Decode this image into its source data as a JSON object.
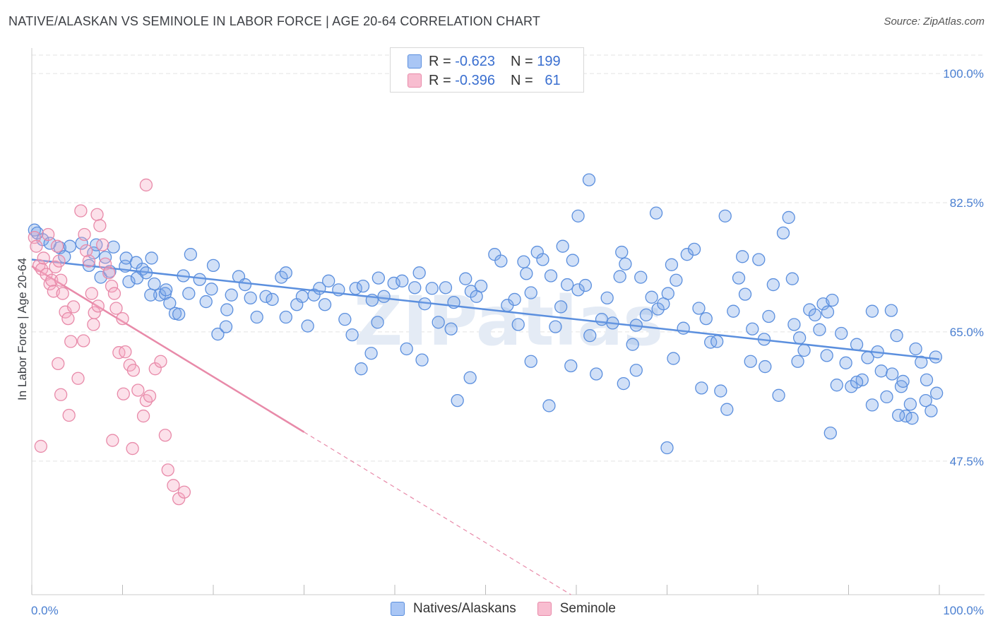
{
  "title": "NATIVE/ALASKAN VS SEMINOLE IN LABOR FORCE | AGE 20-64 CORRELATION CHART",
  "source": "Source: ZipAtlas.com",
  "legend": {
    "r_label": "R =",
    "n_label": "N =",
    "rows": [
      {
        "r": "-0.623",
        "n": "199",
        "color": "#a9c6f5",
        "border": "#5b8fde"
      },
      {
        "r": "-0.396",
        "n": "61",
        "color": "#f8bdd0",
        "border": "#e88aa9"
      }
    ]
  },
  "bottom_legend": [
    {
      "label": "Natives/Alaskans",
      "color": "#a9c6f5",
      "border": "#5b8fde"
    },
    {
      "label": "Seminole",
      "color": "#f8bdd0",
      "border": "#e88aa9"
    }
  ],
  "watermark": "ZIPatlas",
  "chart_data": {
    "type": "scatter",
    "ylabel": "In Labor Force | Age 20-64",
    "x_tick_labels": [
      "0.0%",
      "100.0%"
    ],
    "y_tick_labels": [
      "100.0%",
      "82.5%",
      "65.0%",
      "47.5%"
    ],
    "y_ticks": [
      100.0,
      82.5,
      65.0,
      47.5
    ],
    "xlim": [
      0,
      100
    ],
    "ylim": [
      29.4,
      102.5
    ],
    "grid": true,
    "series": [
      {
        "name": "Natives/Alaskans",
        "color": "#5b8fde",
        "fill": "rgba(122,165,232,0.35)",
        "trend": {
          "x0": 0,
          "y0": 74.8,
          "x1": 100,
          "y1": 61.3,
          "dash_from": null
        },
        "points": [
          [
            0.3,
            78.8
          ],
          [
            0.6,
            78.4
          ],
          [
            1.2,
            77.5
          ],
          [
            2.0,
            77.0
          ],
          [
            3.1,
            76.4
          ],
          [
            3.6,
            75.2
          ],
          [
            4.2,
            76.6
          ],
          [
            5.5,
            77.0
          ],
          [
            6.3,
            74.0
          ],
          [
            6.8,
            75.7
          ],
          [
            7.1,
            76.8
          ],
          [
            7.6,
            72.4
          ],
          [
            8.6,
            73.2
          ],
          [
            8.1,
            75.1
          ],
          [
            9.0,
            76.5
          ],
          [
            10.3,
            73.9
          ],
          [
            10.4,
            75.0
          ],
          [
            10.7,
            71.8
          ],
          [
            11.5,
            74.4
          ],
          [
            11.6,
            72.3
          ],
          [
            12.2,
            73.5
          ],
          [
            12.6,
            73.0
          ],
          [
            13.2,
            75.0
          ],
          [
            13.5,
            71.5
          ],
          [
            14.1,
            70.0
          ],
          [
            14.7,
            70.2
          ],
          [
            14.8,
            70.7
          ],
          [
            15.2,
            68.9
          ],
          [
            15.8,
            67.5
          ],
          [
            16.2,
            67.4
          ],
          [
            17.3,
            70.2
          ],
          [
            17.5,
            75.5
          ],
          [
            18.5,
            72.1
          ],
          [
            19.2,
            69.1
          ],
          [
            19.8,
            70.8
          ],
          [
            20.5,
            64.7
          ],
          [
            21.5,
            68.0
          ],
          [
            22.0,
            70.0
          ],
          [
            21.4,
            65.7
          ],
          [
            22.8,
            72.5
          ],
          [
            23.5,
            71.4
          ],
          [
            24.1,
            69.6
          ],
          [
            24.8,
            67.0
          ],
          [
            25.8,
            69.8
          ],
          [
            26.5,
            69.4
          ],
          [
            27.5,
            72.4
          ],
          [
            28.0,
            73.0
          ],
          [
            29.2,
            68.7
          ],
          [
            29.8,
            69.8
          ],
          [
            30.4,
            65.8
          ],
          [
            31.1,
            70.0
          ],
          [
            31.7,
            70.9
          ],
          [
            32.3,
            68.7
          ],
          [
            32.7,
            71.9
          ],
          [
            33.8,
            70.7
          ],
          [
            34.5,
            66.7
          ],
          [
            35.3,
            64.6
          ],
          [
            35.7,
            70.9
          ],
          [
            36.5,
            71.2
          ],
          [
            37.5,
            69.3
          ],
          [
            38.1,
            66.3
          ],
          [
            38.8,
            69.8
          ],
          [
            38.2,
            72.3
          ],
          [
            39.9,
            71.6
          ],
          [
            40.8,
            71.9
          ],
          [
            41.3,
            62.7
          ],
          [
            42.2,
            71.0
          ],
          [
            42.7,
            73.0
          ],
          [
            43.3,
            68.8
          ],
          [
            44.1,
            70.9
          ],
          [
            44.8,
            66.3
          ],
          [
            45.6,
            71.0
          ],
          [
            46.2,
            65.4
          ],
          [
            46.5,
            69.0
          ],
          [
            47.8,
            72.2
          ],
          [
            48.4,
            70.5
          ],
          [
            49.0,
            69.8
          ],
          [
            49.5,
            71.2
          ],
          [
            51.0,
            75.5
          ],
          [
            51.7,
            74.6
          ],
          [
            52.4,
            68.6
          ],
          [
            53.2,
            69.4
          ],
          [
            53.6,
            66.0
          ],
          [
            54.2,
            74.5
          ],
          [
            54.5,
            72.9
          ],
          [
            55.0,
            70.3
          ],
          [
            55.7,
            75.8
          ],
          [
            56.3,
            74.8
          ],
          [
            57.2,
            72.6
          ],
          [
            57.7,
            65.7
          ],
          [
            58.3,
            68.4
          ],
          [
            58.5,
            76.6
          ],
          [
            59.0,
            71.4
          ],
          [
            59.6,
            74.7
          ],
          [
            60.2,
            70.7
          ],
          [
            61.0,
            71.3
          ],
          [
            61.5,
            64.5
          ],
          [
            62.2,
            59.3
          ],
          [
            62.8,
            66.7
          ],
          [
            63.4,
            69.6
          ],
          [
            64.0,
            66.2
          ],
          [
            64.8,
            72.5
          ],
          [
            65.4,
            74.2
          ],
          [
            66.2,
            63.3
          ],
          [
            66.6,
            65.9
          ],
          [
            67.1,
            72.4
          ],
          [
            67.7,
            67.3
          ],
          [
            68.3,
            69.7
          ],
          [
            69.0,
            68.1
          ],
          [
            69.6,
            68.8
          ],
          [
            70.1,
            70.2
          ],
          [
            70.5,
            74.1
          ],
          [
            71.0,
            72.0
          ],
          [
            71.8,
            65.5
          ],
          [
            72.2,
            75.5
          ],
          [
            73.0,
            76.2
          ],
          [
            73.5,
            68.2
          ],
          [
            74.3,
            66.8
          ],
          [
            74.8,
            63.6
          ],
          [
            75.5,
            63.7
          ],
          [
            75.9,
            57.0
          ],
          [
            76.6,
            54.5
          ],
          [
            77.3,
            67.8
          ],
          [
            77.9,
            72.3
          ],
          [
            78.6,
            70.1
          ],
          [
            79.2,
            61.0
          ],
          [
            79.4,
            65.4
          ],
          [
            80.1,
            74.8
          ],
          [
            80.8,
            60.3
          ],
          [
            81.2,
            67.1
          ],
          [
            81.7,
            71.4
          ],
          [
            82.3,
            56.4
          ],
          [
            82.8,
            78.4
          ],
          [
            83.4,
            80.5
          ],
          [
            84.0,
            66.0
          ],
          [
            84.6,
            64.2
          ],
          [
            85.1,
            62.5
          ],
          [
            85.7,
            68.0
          ],
          [
            86.3,
            67.3
          ],
          [
            86.8,
            65.3
          ],
          [
            87.2,
            68.8
          ],
          [
            87.7,
            67.7
          ],
          [
            88.2,
            69.3
          ],
          [
            88.7,
            57.8
          ],
          [
            89.2,
            64.8
          ],
          [
            89.7,
            60.8
          ],
          [
            90.3,
            57.6
          ],
          [
            90.9,
            63.3
          ],
          [
            91.5,
            58.5
          ],
          [
            92.1,
            61.5
          ],
          [
            92.6,
            67.8
          ],
          [
            93.2,
            62.3
          ],
          [
            93.6,
            59.7
          ],
          [
            94.2,
            56.2
          ],
          [
            94.7,
            67.9
          ],
          [
            95.3,
            64.5
          ],
          [
            95.8,
            57.6
          ],
          [
            96.3,
            53.6
          ],
          [
            96.8,
            55.2
          ],
          [
            97.4,
            62.7
          ],
          [
            98.0,
            60.9
          ],
          [
            98.6,
            58.5
          ],
          [
            99.1,
            54.3
          ],
          [
            99.6,
            61.6
          ],
          [
            61.4,
            85.6
          ],
          [
            60.2,
            80.7
          ],
          [
            68.8,
            81.1
          ],
          [
            76.4,
            80.7
          ],
          [
            65.0,
            75.8
          ],
          [
            78.3,
            75.2
          ],
          [
            73.8,
            57.4
          ],
          [
            90.9,
            58.2
          ],
          [
            95.5,
            53.7
          ],
          [
            97.0,
            53.3
          ],
          [
            87.6,
            61.8
          ],
          [
            80.7,
            64.0
          ],
          [
            83.8,
            72.2
          ],
          [
            70.7,
            61.4
          ],
          [
            65.2,
            58.0
          ],
          [
            57.0,
            55.0
          ],
          [
            59.4,
            60.4
          ],
          [
            48.3,
            58.8
          ],
          [
            46.9,
            55.7
          ],
          [
            43.0,
            61.2
          ],
          [
            36.3,
            60.0
          ],
          [
            37.4,
            62.1
          ],
          [
            28.0,
            67.0
          ],
          [
            20.0,
            74.0
          ],
          [
            16.7,
            72.6
          ],
          [
            13.1,
            70.0
          ],
          [
            55.0,
            61.0
          ],
          [
            66.6,
            59.8
          ],
          [
            70.0,
            49.3
          ],
          [
            88.0,
            51.3
          ],
          [
            92.6,
            55.1
          ],
          [
            94.8,
            59.3
          ],
          [
            96.0,
            58.3
          ],
          [
            98.5,
            55.7
          ],
          [
            99.7,
            56.7
          ],
          [
            84.4,
            61.0
          ]
        ]
      },
      {
        "name": "Seminole",
        "color": "#e88aa9",
        "fill": "rgba(245,170,195,0.35)",
        "trend": {
          "x0": 0,
          "y0": 73.9,
          "x1": 100,
          "y1": -1.0,
          "dash_from": 30
        },
        "points": [
          [
            0.3,
            77.8
          ],
          [
            0.5,
            76.6
          ],
          [
            0.8,
            74.0
          ],
          [
            1.1,
            73.5
          ],
          [
            1.3,
            75.0
          ],
          [
            1.6,
            72.8
          ],
          [
            1.8,
            78.2
          ],
          [
            2.0,
            71.5
          ],
          [
            2.2,
            72.0
          ],
          [
            2.4,
            70.5
          ],
          [
            2.6,
            73.8
          ],
          [
            2.8,
            76.6
          ],
          [
            3.0,
            74.6
          ],
          [
            3.2,
            72.0
          ],
          [
            3.4,
            70.2
          ],
          [
            3.7,
            67.7
          ],
          [
            4.0,
            66.8
          ],
          [
            4.3,
            63.7
          ],
          [
            4.6,
            68.4
          ],
          [
            5.1,
            58.7
          ],
          [
            5.4,
            81.4
          ],
          [
            5.8,
            78.2
          ],
          [
            6.0,
            76.0
          ],
          [
            6.3,
            74.6
          ],
          [
            6.6,
            70.2
          ],
          [
            6.9,
            67.6
          ],
          [
            7.2,
            80.9
          ],
          [
            7.5,
            79.4
          ],
          [
            7.8,
            76.8
          ],
          [
            8.1,
            74.2
          ],
          [
            8.5,
            73.0
          ],
          [
            8.8,
            71.2
          ],
          [
            9.1,
            70.2
          ],
          [
            9.3,
            68.2
          ],
          [
            9.6,
            62.2
          ],
          [
            10.0,
            66.8
          ],
          [
            10.3,
            62.3
          ],
          [
            10.8,
            60.5
          ],
          [
            11.2,
            59.8
          ],
          [
            11.7,
            57.1
          ],
          [
            12.3,
            53.6
          ],
          [
            12.6,
            55.7
          ],
          [
            13.0,
            56.3
          ],
          [
            13.6,
            60.0
          ],
          [
            14.2,
            61.0
          ],
          [
            14.7,
            51.0
          ],
          [
            15.0,
            46.3
          ],
          [
            15.6,
            44.2
          ],
          [
            16.2,
            42.4
          ],
          [
            16.8,
            43.3
          ],
          [
            2.9,
            60.7
          ],
          [
            3.2,
            56.5
          ],
          [
            4.1,
            53.7
          ],
          [
            5.7,
            63.8
          ],
          [
            6.8,
            66.0
          ],
          [
            7.3,
            68.5
          ],
          [
            8.9,
            50.3
          ],
          [
            10.1,
            56.6
          ],
          [
            11.1,
            49.2
          ],
          [
            12.6,
            84.9
          ],
          [
            1.0,
            49.5
          ]
        ]
      }
    ]
  }
}
